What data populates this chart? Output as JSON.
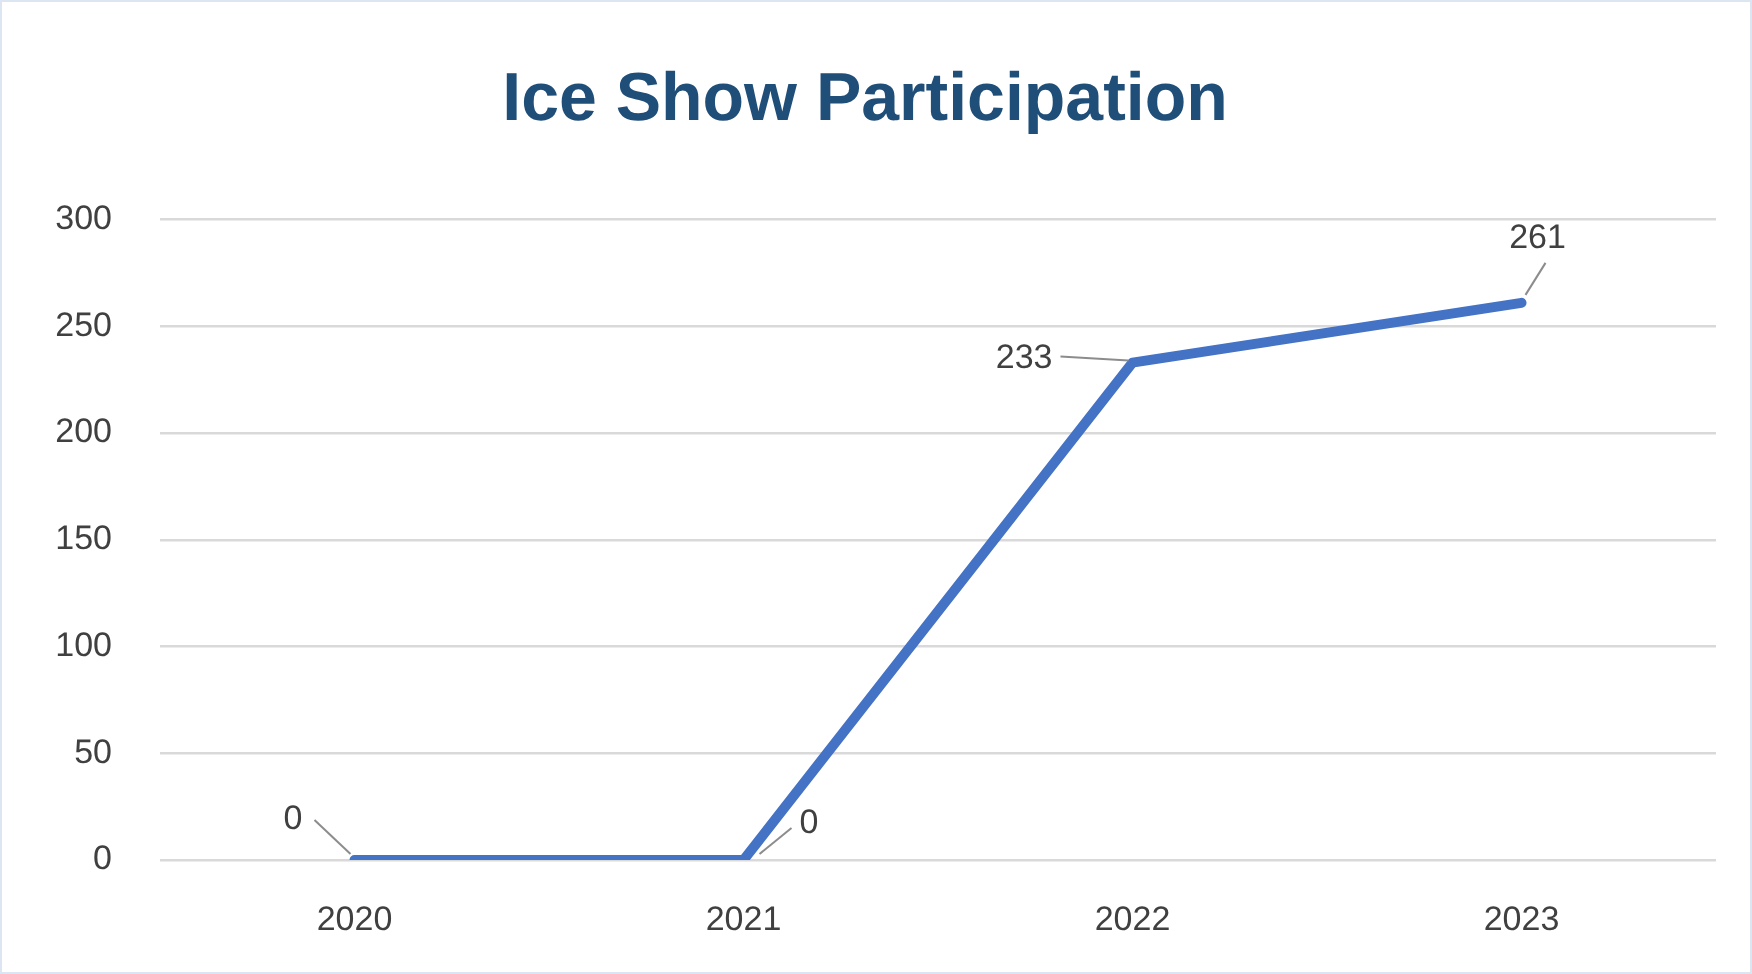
{
  "chart_data": {
    "type": "line",
    "title": "Ice Show Participation",
    "categories": [
      "2020",
      "2021",
      "2022",
      "2023"
    ],
    "values": [
      0,
      0,
      233,
      261
    ],
    "color": "#4472c4",
    "ylim": [
      0,
      300
    ],
    "yticks": [
      0,
      50,
      100,
      150,
      200,
      250,
      300
    ],
    "grid": "y",
    "marker": "none",
    "line_style": "solid",
    "data_labels": true
  }
}
